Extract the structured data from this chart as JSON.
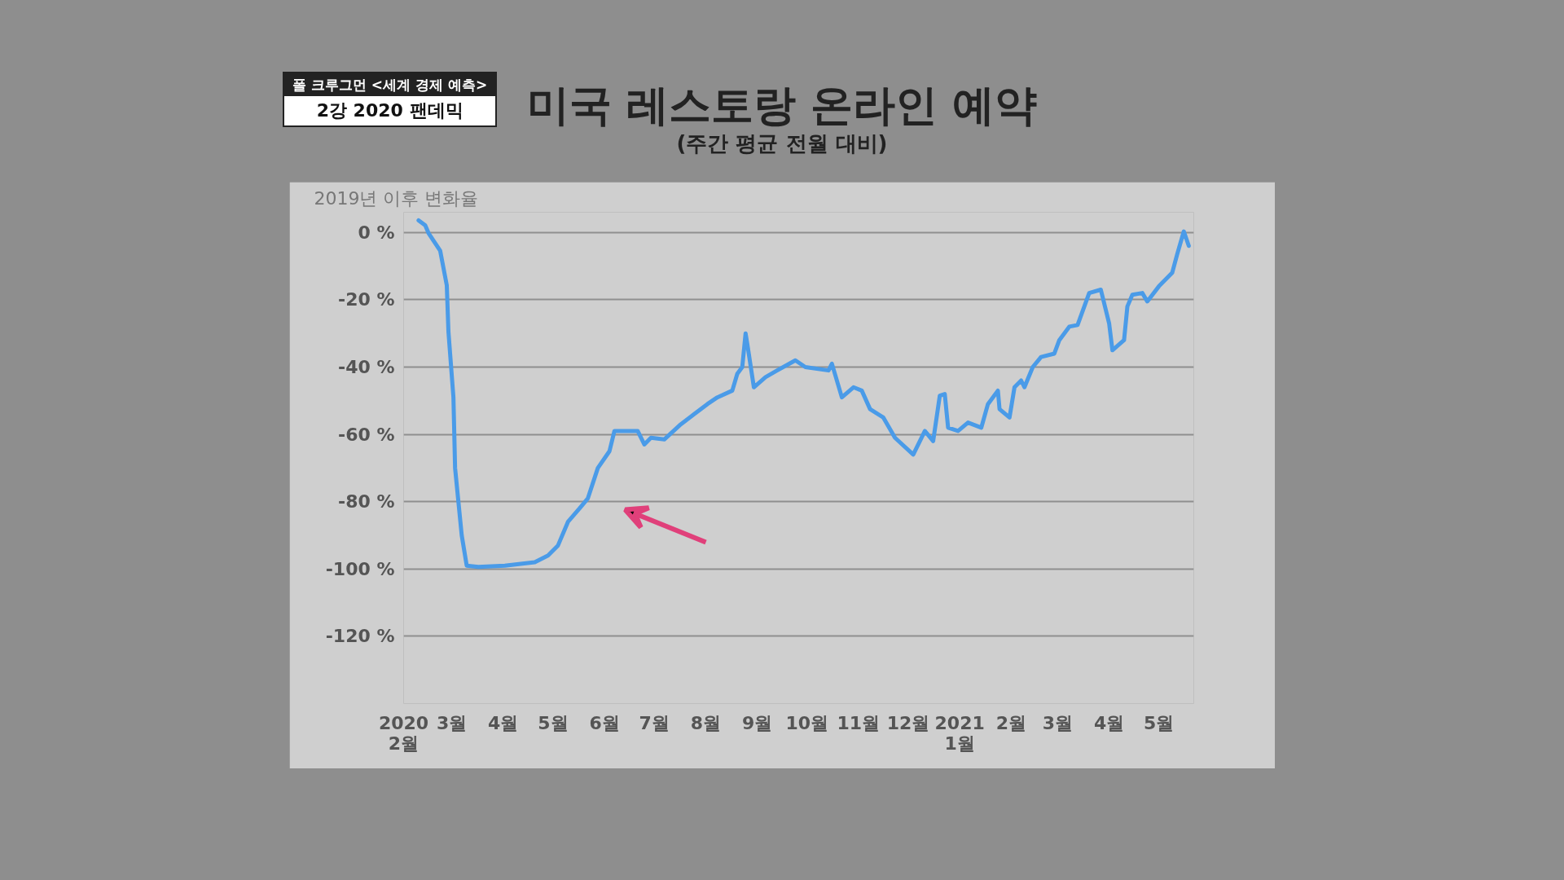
{
  "chart_data": {
    "type": "line",
    "title": "미국 레스토랑 온라인 예약",
    "subtitle": "(주간 평균 전월 대비)",
    "ylabel": "2019년 이후 변화율",
    "annotations": [
      "폴 크루그먼 <세계 경제 예측>",
      "2강 2020 팬데믹"
    ],
    "x": [
      "2020-02-10",
      "2020-02-14",
      "2020-02-16",
      "2020-02-23",
      "2020-02-27",
      "2020-02-28",
      "2020-03-02",
      "2020-03-03",
      "2020-03-07",
      "2020-03-10",
      "2020-03-17",
      "2020-04-02",
      "2020-04-20",
      "2020-04-28",
      "2020-05-04",
      "2020-05-10",
      "2020-05-17",
      "2020-05-22",
      "2020-05-28",
      "2020-06-04",
      "2020-06-07",
      "2020-06-13",
      "2020-06-21",
      "2020-06-25",
      "2020-06-29",
      "2020-07-07",
      "2020-07-17",
      "2020-07-25",
      "2020-08-02",
      "2020-08-08",
      "2020-08-17",
      "2020-08-20",
      "2020-08-23",
      "2020-08-25",
      "2020-08-26",
      "2020-08-30",
      "2020-09-06",
      "2020-09-13",
      "2020-09-24",
      "2020-09-30",
      "2020-10-14",
      "2020-10-16",
      "2020-10-22",
      "2020-10-29",
      "2020-11-03",
      "2020-11-08",
      "2020-11-16",
      "2020-11-23",
      "2020-12-04",
      "2020-12-08",
      "2020-12-11",
      "2020-12-16",
      "2020-12-20",
      "2020-12-23",
      "2020-12-25",
      "2020-12-31",
      "2021-01-06",
      "2021-01-14",
      "2021-01-18",
      "2021-01-24",
      "2021-01-25",
      "2021-01-31",
      "2021-02-03",
      "2021-02-07",
      "2021-02-09",
      "2021-02-14",
      "2021-02-19",
      "2021-02-27",
      "2021-03-02",
      "2021-03-08",
      "2021-03-13",
      "2021-03-20",
      "2021-03-27",
      "2021-04-01",
      "2021-04-03",
      "2021-04-10",
      "2021-04-12",
      "2021-04-15",
      "2021-04-21",
      "2021-04-24",
      "2021-05-01",
      "2021-05-09",
      "2021-05-12",
      "2021-05-16",
      "2021-05-19"
    ],
    "series": [
      {
        "color": "#4a9be8",
        "values": [
          3.6,
          2.1,
          -0.2,
          -5.4,
          -15.7,
          -29.5,
          -49,
          -70,
          -90,
          -99,
          -99.4,
          -99,
          -98,
          -96,
          -93,
          -86,
          -82,
          -79,
          -70,
          -65,
          -59,
          -59,
          -59,
          -63,
          -61,
          -61.5,
          -57,
          -54,
          -51,
          -49,
          -47,
          -42,
          -40,
          -30,
          -33,
          -46,
          -43,
          -41,
          -38,
          -40,
          -41,
          -39,
          -49,
          -46,
          -47,
          -52.5,
          -55,
          -61,
          -66,
          -62,
          -59,
          -62,
          -48.5,
          -48,
          -58,
          -59,
          -56.5,
          -58,
          -51,
          -47,
          -52.5,
          -55,
          -46,
          -44,
          -46,
          -40,
          -37,
          -36,
          -32,
          -28,
          -27.5,
          -18,
          -17,
          -27,
          -35,
          -32,
          -22,
          -18.5,
          -18,
          -20.5,
          -16,
          -12,
          -6.5,
          0.3,
          -4
        ]
      }
    ],
    "xlim": [
      "2020-02-01",
      "2021-05-22"
    ],
    "xticks": [
      {
        "value": "2020-02-01",
        "label": "2020\n2월"
      },
      {
        "value": "2020-03-01",
        "label": "3월"
      },
      {
        "value": "2020-04-01",
        "label": "4월"
      },
      {
        "value": "2020-05-01",
        "label": "5월"
      },
      {
        "value": "2020-06-01",
        "label": "6월"
      },
      {
        "value": "2020-07-01",
        "label": "7월"
      },
      {
        "value": "2020-08-01",
        "label": "8월"
      },
      {
        "value": "2020-09-01",
        "label": "9월"
      },
      {
        "value": "2020-10-01",
        "label": "10월"
      },
      {
        "value": "2020-11-01",
        "label": "11월"
      },
      {
        "value": "2020-12-01",
        "label": "12월"
      },
      {
        "value": "2021-01-01",
        "label": "2021\n1월"
      },
      {
        "value": "2021-02-01",
        "label": "2월"
      },
      {
        "value": "2021-03-01",
        "label": "3월"
      },
      {
        "value": "2021-04-01",
        "label": "4월"
      },
      {
        "value": "2021-05-01",
        "label": "5월"
      }
    ],
    "ylim": [
      -140,
      6
    ],
    "yticks": [
      {
        "value": 0,
        "label": "0 %"
      },
      {
        "value": -20,
        "label": "-20 %"
      },
      {
        "value": -40,
        "label": "-40 %"
      },
      {
        "value": -60,
        "label": "-60 %"
      },
      {
        "value": -80,
        "label": "-80 %"
      },
      {
        "value": -100,
        "label": "-100 %"
      },
      {
        "value": -120,
        "label": "-120 %"
      },
      {
        "value": -140,
        "label": null
      }
    ],
    "grid": "y",
    "line_style": "solid"
  }
}
